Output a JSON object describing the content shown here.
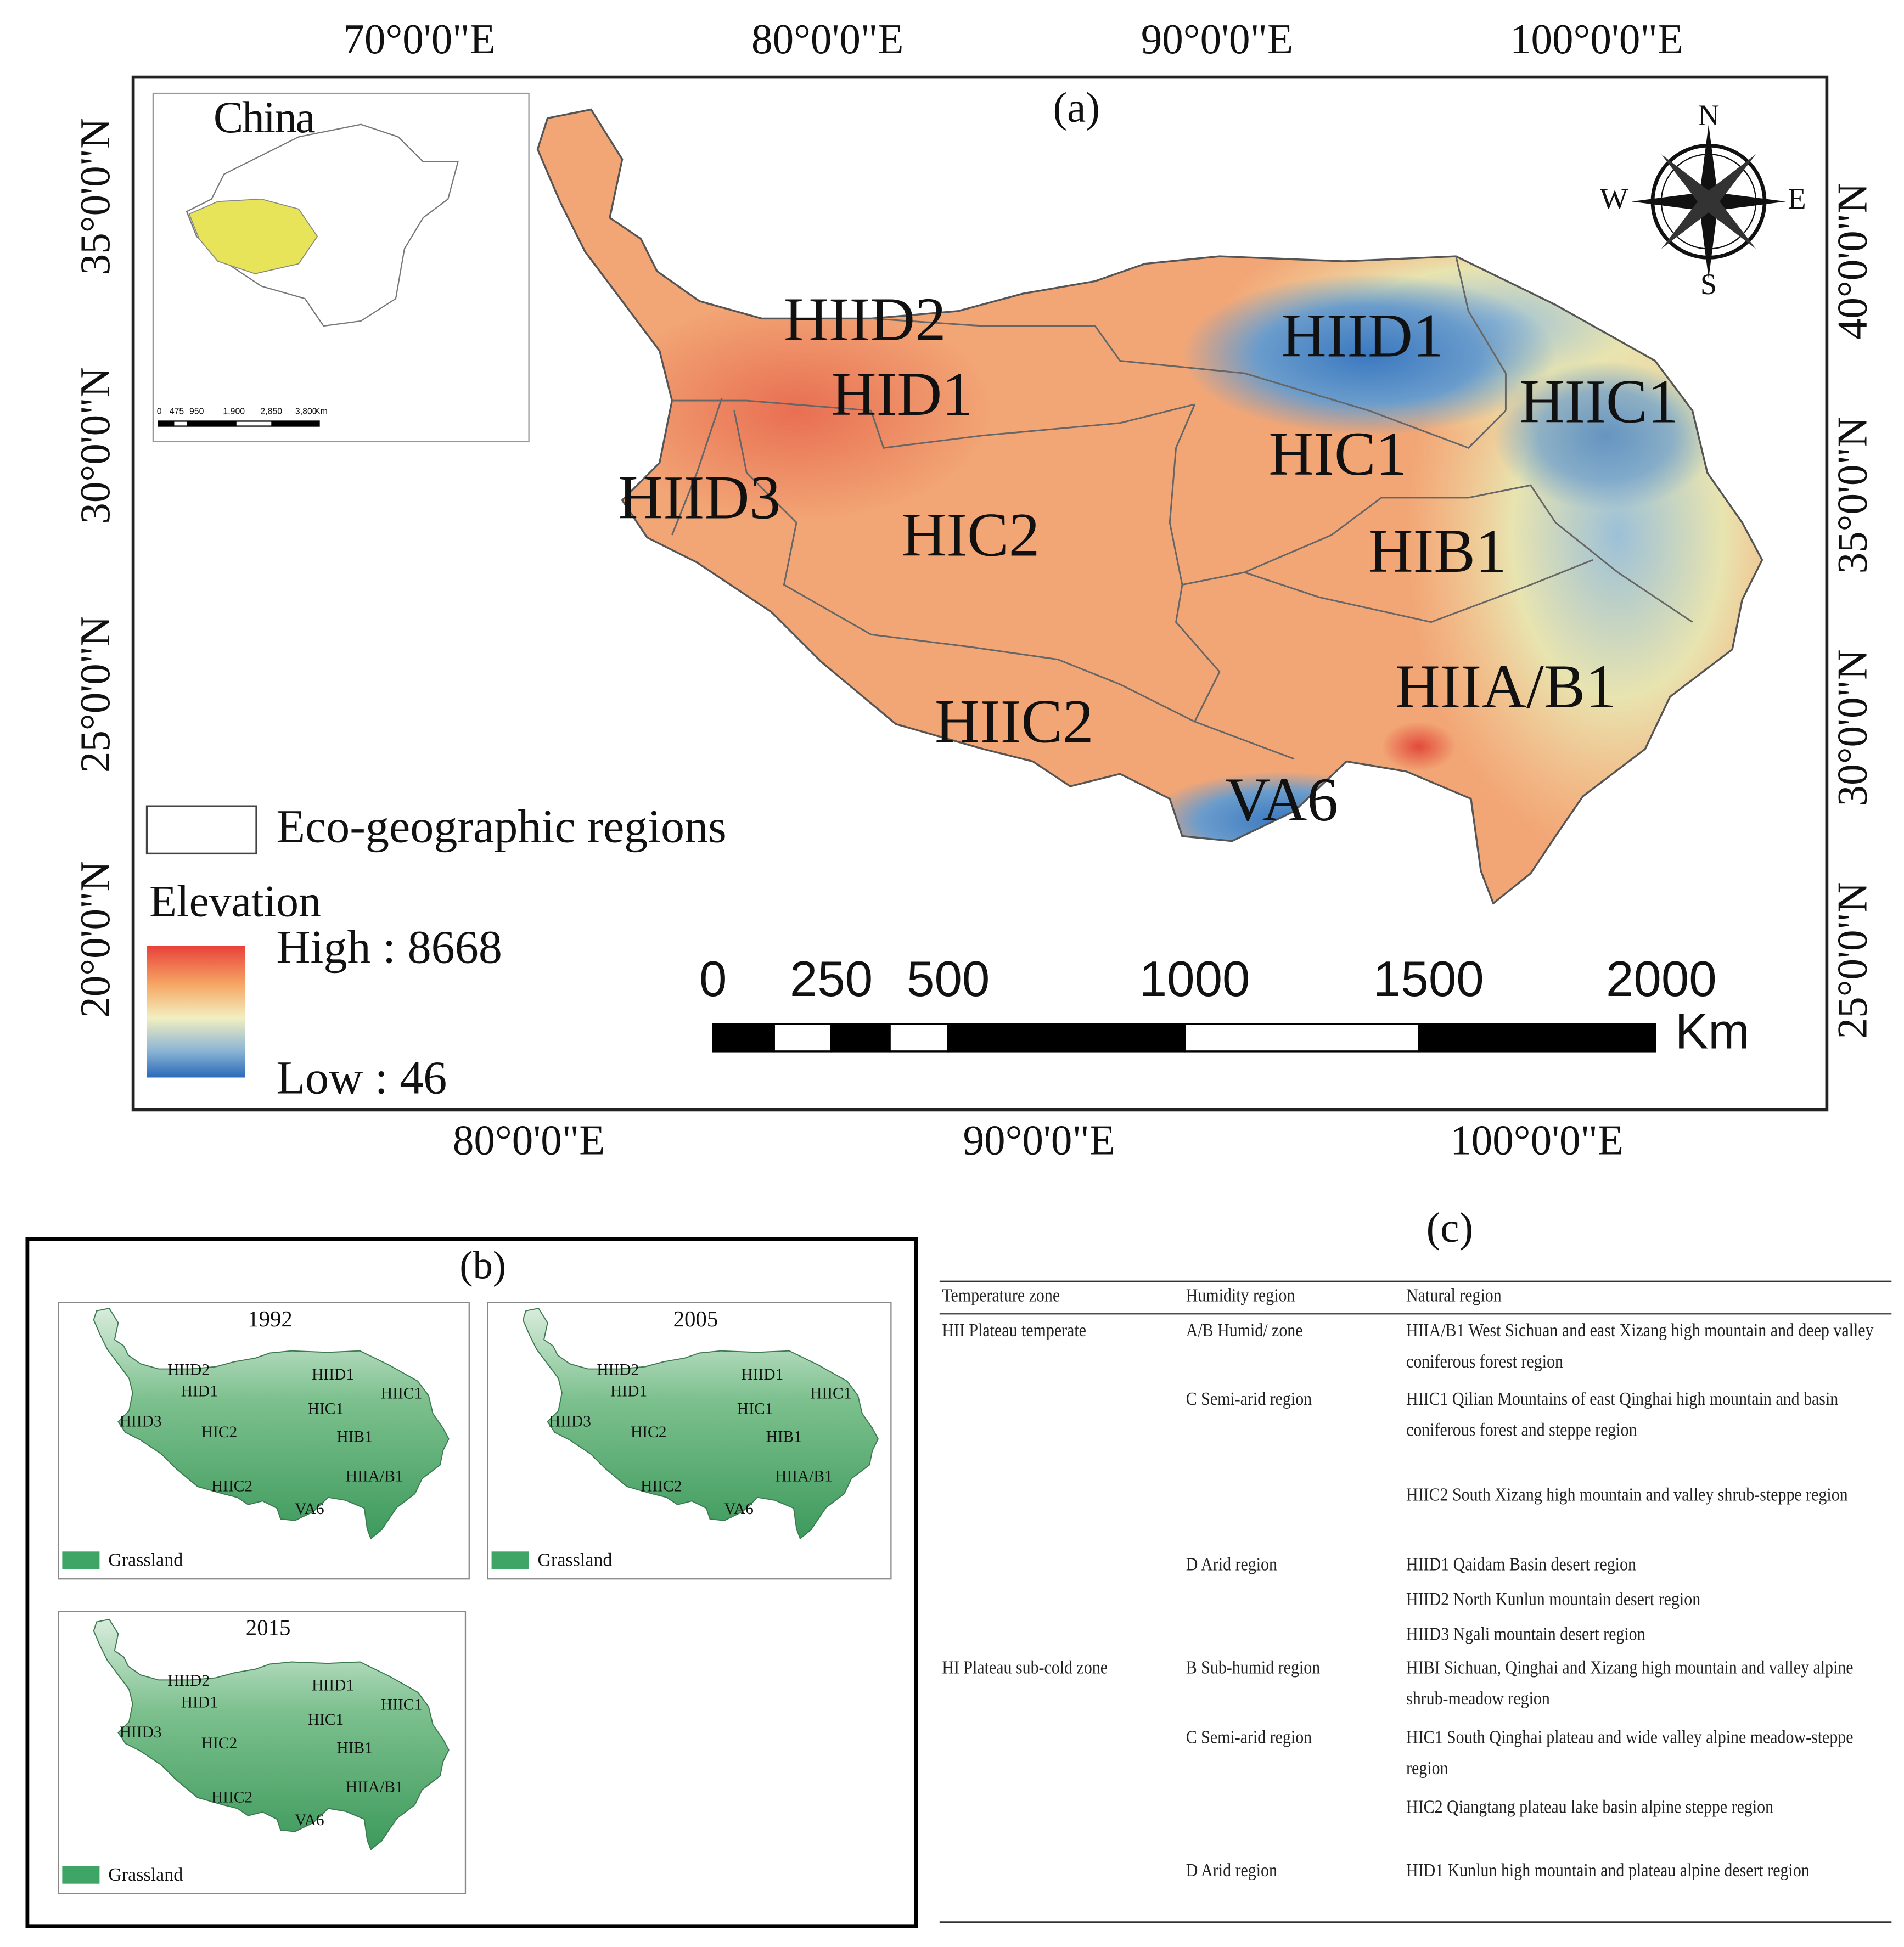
{
  "panel_a": {
    "label": "(a)",
    "lon_top": [
      "70°0'0\"E",
      "80°0'0\"E",
      "90°0'0\"E",
      "100°0'0\"E"
    ],
    "lon_bottom": [
      "80°0'0\"E",
      "90°0'0\"E",
      "100°0'0\"E"
    ],
    "lat_left": [
      "35°0'0\"N",
      "30°0'0\"N",
      "25°0'0\"N",
      "20°0'0\"N"
    ],
    "lat_right": [
      "40°0'0\"N",
      "35°0'0\"N",
      "30°0'0\"N",
      "25°0'0\"N"
    ],
    "regions": [
      "HIID2",
      "HID1",
      "HIID1",
      "HIIC1",
      "HIC1",
      "HIID3",
      "HIC2",
      "HIB1",
      "HIIA/B1",
      "HIIC2",
      "VA6"
    ],
    "inset": {
      "title": "China",
      "scale": [
        "0",
        "475",
        "950",
        "1,900",
        "2,850",
        "3,800",
        "Km"
      ]
    },
    "compass": {
      "n": "N",
      "s": "S",
      "e": "E",
      "w": "W"
    },
    "legend": {
      "boundary": "Eco-geographic regions",
      "title": "Elevation",
      "high": "High : 8668",
      "low": "Low : 46"
    },
    "scale_bar": {
      "labels": [
        "0",
        "250",
        "500",
        "1000",
        "1500",
        "2000"
      ],
      "unit": "Km"
    }
  },
  "panel_b": {
    "label": "(b)",
    "years": [
      "1992",
      "2005",
      "2015"
    ],
    "legend": "Grassland"
  },
  "panel_c": {
    "label": "(c)",
    "header": [
      "Temperature zone",
      "Humidity region",
      "Natural region"
    ],
    "rows": [
      {
        "zone": "HII Plateau temperate",
        "humidity": "A/B Humid/ zone",
        "natural": "HIIA/B1 West Sichuan and east Xizang high mountain and deep valley coniferous forest region"
      },
      {
        "humidity": "C Semi-arid region",
        "natural": "HIIC1 Qilian Mountains of east Qinghai high mountain and basin coniferous forest and steppe region"
      },
      {
        "natural": "HIIC2 South Xizang high mountain and valley shrub-steppe region"
      },
      {
        "humidity": "D Arid region",
        "natural": "HIID1 Qaidam Basin desert region"
      },
      {
        "natural": "HIID2 North Kunlun mountain desert region"
      },
      {
        "natural": "HIID3 Ngali mountain desert region"
      },
      {
        "zone": "HI Plateau sub-cold zone",
        "humidity": "B Sub-humid region",
        "natural": "HIBI Sichuan, Qinghai and Xizang high mountain and valley alpine shrub-meadow region"
      },
      {
        "humidity": "C Semi-arid region",
        "natural": "HIC1 South Qinghai plateau and wide valley alpine meadow-steppe region"
      },
      {
        "natural": "HIC2 Qiangtang plateau lake basin alpine steppe region"
      },
      {
        "humidity": "D Arid region",
        "natural": "HID1 Kunlun high mountain and plateau alpine desert region"
      }
    ]
  }
}
